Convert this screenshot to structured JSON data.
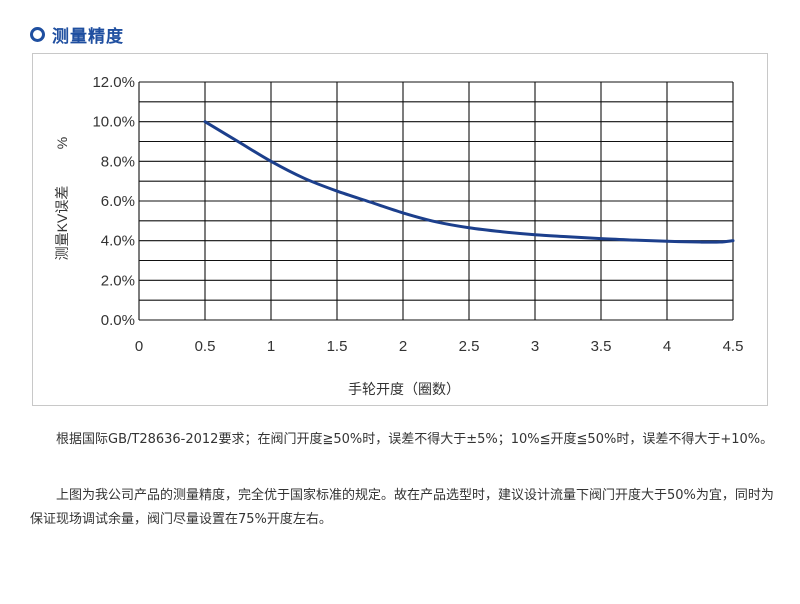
{
  "header": {
    "title": "测量精度",
    "accent_color": "#1f4fa0",
    "icon": "ring-icon"
  },
  "chart_data": {
    "type": "line",
    "title": "",
    "xlabel": "手轮开度（圈数）",
    "ylabel": "测量KV误差",
    "ylabel_unit": "%",
    "xlim": [
      0,
      4.5
    ],
    "ylim": [
      0,
      12
    ],
    "x_ticks": [
      "0",
      "0.5",
      "1",
      "1.5",
      "2",
      "2.5",
      "3",
      "3.5",
      "4",
      "4.5"
    ],
    "y_ticks": [
      "0.0%",
      "2.0%",
      "4.0%",
      "6.0%",
      "8.0%",
      "10.0%",
      "12.0%"
    ],
    "grid": true,
    "line_color": "#1c3f8c",
    "series": [
      {
        "x": [
          0.5,
          0.75,
          1.0,
          1.25,
          1.5,
          1.75,
          2.0,
          2.25,
          2.5,
          2.75,
          3.0,
          3.25,
          3.5,
          3.75,
          4.0,
          4.25,
          4.4,
          4.5
        ],
        "values": [
          10.0,
          9.0,
          8.0,
          7.15,
          6.5,
          5.95,
          5.4,
          4.95,
          4.65,
          4.45,
          4.3,
          4.2,
          4.1,
          4.03,
          3.97,
          3.93,
          3.93,
          4.0
        ]
      }
    ]
  },
  "description": {
    "p1": "根据国际GB/T28636-2012要求；在阀门开度≧50%时，误差不得大于±5%；10%≦开度≦50%时，误差不得大于+10%。",
    "p2": "上图为我公司产品的测量精度，完全优于国家标准的规定。故在产品选型时，建议设计流量下阀门开度大于50%为宜，同时为保证现场调试余量，阀门尽量设置在75%开度左右。"
  }
}
